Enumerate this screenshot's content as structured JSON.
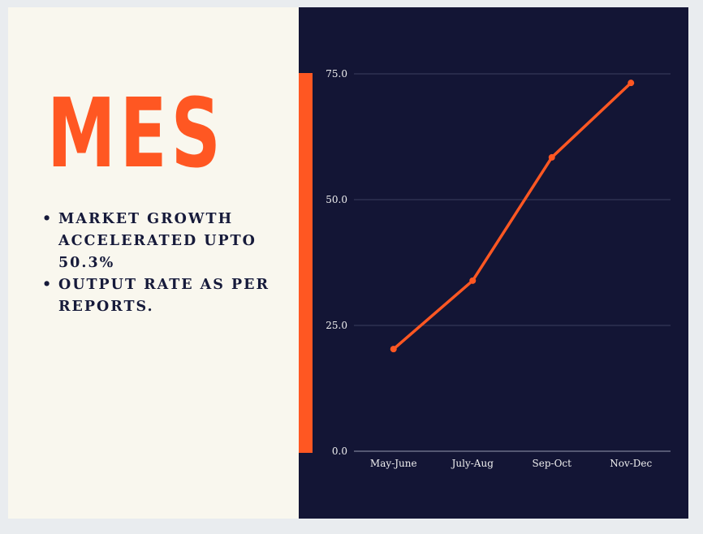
{
  "title": "MES",
  "bullets": [
    "MARKET GROWTH\nACCELERATED UPTO\n50.3%",
    "OUTPUT RATE AS PER\nREPORTS."
  ],
  "colors": {
    "accent": "#ff5722",
    "panel_dark": "#131535",
    "panel_light": "#f9f7ee",
    "text_dark": "#161a3a"
  },
  "chart_data": {
    "type": "line",
    "categories": [
      "May-June",
      "July-Aug",
      "Sep-Oct",
      "Nov-Dec"
    ],
    "series": [
      {
        "values": [
          20.3,
          33.9,
          58.4,
          73.2
        ]
      }
    ],
    "yticks": [
      "0.0",
      "25.0",
      "50.0",
      "75.0"
    ],
    "ylim": [
      0,
      75
    ],
    "grid": true,
    "legend": "none"
  }
}
